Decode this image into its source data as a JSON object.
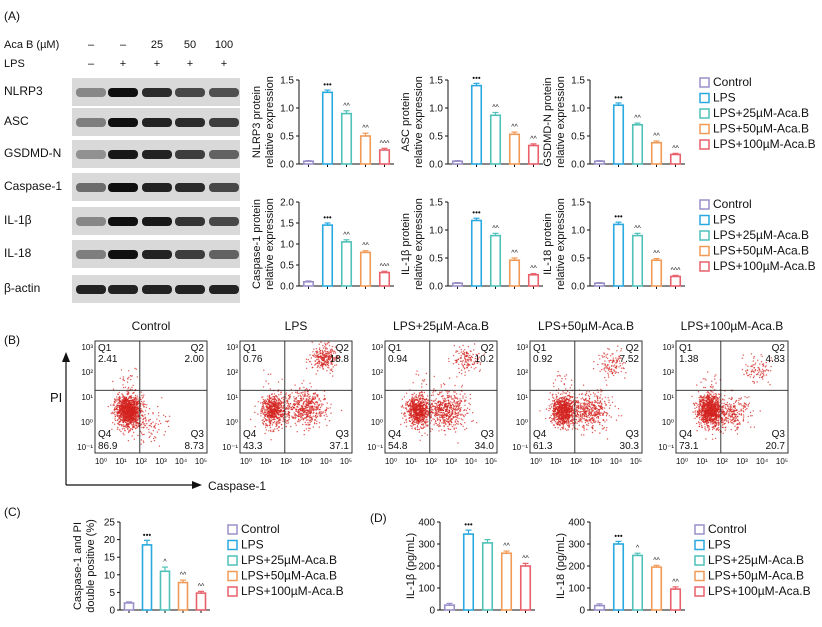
{
  "panels": {
    "A": "(A)",
    "B": "(B)",
    "C": "(C)",
    "D": "(D)"
  },
  "colors": {
    "Control": "#9b8fc9",
    "LPS": "#29a9e0",
    "LPS+25µM-Aca.B": "#4fc1b8",
    "LPS+50µM-Aca.B": "#f19a57",
    "LPS+100µM-Aca.B": "#e8616b",
    "dot": "#d3231f"
  },
  "western": {
    "header_rows": [
      {
        "label": "Aca B (µM)",
        "values": [
          "–",
          "–",
          "25",
          "50",
          "100"
        ]
      },
      {
        "label": "LPS",
        "values": [
          "–",
          "+",
          "+",
          "+",
          "+"
        ]
      }
    ],
    "bands": [
      "NLRP3",
      "ASC",
      "GSDMD-N",
      "Caspase-1",
      "IL-1β",
      "IL-18",
      "β-actin"
    ]
  },
  "legend": [
    "Control",
    "LPS",
    "LPS+25µM-Aca.B",
    "LPS+50µM-Aca.B",
    "LPS+100µM-Aca.B"
  ],
  "chart_data": [
    {
      "id": "nlrp3",
      "type": "bar",
      "ylabel": [
        "NLRP3 protein",
        "relative expression"
      ],
      "ylim": [
        0,
        1.5
      ],
      "yticks": [
        "0.0",
        "0.5",
        "1.0",
        "1.5"
      ],
      "categories": [
        "Control",
        "LPS",
        "LPS+25µM-Aca.B",
        "LPS+50µM-Aca.B",
        "LPS+100µM-Aca.B"
      ],
      "values": [
        0.05,
        1.28,
        0.9,
        0.5,
        0.25
      ],
      "errors": [
        0.01,
        0.04,
        0.05,
        0.05,
        0.03
      ],
      "marks": [
        "",
        "•••",
        "^^",
        "^^",
        "^^^"
      ]
    },
    {
      "id": "asc",
      "type": "bar",
      "ylabel": [
        "ASC protein",
        "relative expression"
      ],
      "ylim": [
        0,
        1.5
      ],
      "yticks": [
        "0.0",
        "0.5",
        "1.0",
        "1.5"
      ],
      "categories": [
        "Control",
        "LPS",
        "LPS+25µM-Aca.B",
        "LPS+50µM-Aca.B",
        "LPS+100µM-Aca.B"
      ],
      "values": [
        0.05,
        1.4,
        0.87,
        0.53,
        0.33
      ],
      "errors": [
        0.01,
        0.04,
        0.05,
        0.04,
        0.03
      ],
      "marks": [
        "",
        "•••",
        "^^",
        "^^",
        "^^"
      ]
    },
    {
      "id": "gsdmd",
      "type": "bar",
      "ylabel": [
        "GSDMD-N protein",
        "relative expression"
      ],
      "ylim": [
        0,
        1.5
      ],
      "yticks": [
        "0.0",
        "0.5",
        "1.0",
        "1.5"
      ],
      "categories": [
        "Control",
        "LPS",
        "LPS+25µM-Aca.B",
        "LPS+50µM-Aca.B",
        "LPS+100µM-Aca.B"
      ],
      "values": [
        0.05,
        1.05,
        0.7,
        0.38,
        0.17
      ],
      "errors": [
        0.01,
        0.04,
        0.03,
        0.03,
        0.02
      ],
      "marks": [
        "",
        "•••",
        "^^",
        "^^",
        "^^"
      ]
    },
    {
      "id": "casp1",
      "type": "bar",
      "ylabel": [
        "Caspase-1 protein",
        "relative expression"
      ],
      "ylim": [
        0,
        2.0
      ],
      "yticks": [
        "0.0",
        "0.5",
        "1.0",
        "1.5",
        "2.0"
      ],
      "categories": [
        "Control",
        "LPS",
        "LPS+25µM-Aca.B",
        "LPS+50µM-Aca.B",
        "LPS+100µM-Aca.B"
      ],
      "values": [
        0.1,
        1.45,
        1.05,
        0.8,
        0.32
      ],
      "errors": [
        0.02,
        0.05,
        0.05,
        0.04,
        0.03
      ],
      "marks": [
        "",
        "•••",
        "^^",
        "^^",
        "^^^"
      ]
    },
    {
      "id": "il1b",
      "type": "bar",
      "ylabel": [
        "IL-1β protein",
        "relative expression"
      ],
      "ylim": [
        0,
        1.5
      ],
      "yticks": [
        "0.0",
        "0.5",
        "1.0",
        "1.5"
      ],
      "categories": [
        "Control",
        "LPS",
        "LPS+25µM-Aca.B",
        "LPS+50µM-Aca.B",
        "LPS+100µM-Aca.B"
      ],
      "values": [
        0.05,
        1.17,
        0.9,
        0.46,
        0.2
      ],
      "errors": [
        0.01,
        0.04,
        0.04,
        0.04,
        0.02
      ],
      "marks": [
        "",
        "•••",
        "^^",
        "^^",
        "^^"
      ]
    },
    {
      "id": "il18",
      "type": "bar",
      "ylabel": [
        "IL-18 protein",
        "relative expression"
      ],
      "ylim": [
        0,
        1.5
      ],
      "yticks": [
        "0.0",
        "0.5",
        "1.0",
        "1.5"
      ],
      "categories": [
        "Control",
        "LPS",
        "LPS+25µM-Aca.B",
        "LPS+50µM-Aca.B",
        "LPS+100µM-Aca.B"
      ],
      "values": [
        0.05,
        1.1,
        0.9,
        0.46,
        0.17
      ],
      "errors": [
        0.01,
        0.04,
        0.04,
        0.03,
        0.02
      ],
      "marks": [
        "",
        "•••",
        "^^",
        "^^",
        "^^^"
      ]
    },
    {
      "id": "c",
      "type": "bar",
      "ylabel": [
        "Caspase-1 and PI",
        "double positive (%)"
      ],
      "ylim": [
        0,
        25
      ],
      "yticks": [
        "0",
        "5",
        "10",
        "15",
        "20",
        "25"
      ],
      "categories": [
        "Control",
        "LPS",
        "LPS+25µM-Aca.B",
        "LPS+50µM-Aca.B",
        "LPS+100µM-Aca.B"
      ],
      "values": [
        2,
        18.5,
        11,
        7.8,
        4.8
      ],
      "errors": [
        0.3,
        1.3,
        1.2,
        0.7,
        0.5
      ],
      "marks": [
        "",
        "•••",
        "^",
        "^^",
        "^^"
      ]
    },
    {
      "id": "d1",
      "type": "bar",
      "ylabel": [
        "IL-1β (pg/mL)"
      ],
      "ylim": [
        0,
        400
      ],
      "yticks": [
        "0",
        "100",
        "200",
        "300",
        "400"
      ],
      "categories": [
        "Control",
        "LPS",
        "LPS+25µM-Aca.B",
        "LPS+50µM-Aca.B",
        "LPS+100µM-Aca.B"
      ],
      "values": [
        22,
        345,
        305,
        258,
        200
      ],
      "errors": [
        8,
        18,
        15,
        10,
        12
      ],
      "marks": [
        "",
        "•••",
        "",
        "^^",
        "^^"
      ]
    },
    {
      "id": "d2",
      "type": "bar",
      "ylabel": [
        "IL-18 (pg/mL)"
      ],
      "ylim": [
        0,
        400
      ],
      "yticks": [
        "0",
        "100",
        "200",
        "300",
        "400"
      ],
      "categories": [
        "Control",
        "LPS",
        "LPS+25µM-Aca.B",
        "LPS+50µM-Aca.B",
        "LPS+100µM-Aca.B"
      ],
      "values": [
        20,
        300,
        248,
        195,
        95
      ],
      "errors": [
        8,
        12,
        10,
        8,
        10
      ],
      "marks": [
        "",
        "•••",
        "^",
        "^^",
        "^^"
      ]
    }
  ],
  "flow": {
    "xlabel": "Caspase-1",
    "ylabel": "PI",
    "xticks": [
      "10⁰",
      "10¹",
      "10²",
      "10³",
      "10⁴",
      "10⁵"
    ],
    "yticks": [
      "10³",
      "10²",
      "10¹",
      "10⁰",
      "10⁻¹"
    ],
    "plots": [
      {
        "title": "Control",
        "q1": "2.41",
        "q2": "2.00",
        "q3": "8.73",
        "q4": "86.9"
      },
      {
        "title": "LPS",
        "q1": "0.76",
        "q2": "18.8",
        "q3": "37.1",
        "q4": "43.3"
      },
      {
        "title": "LPS+25µM-Aca.B",
        "q1": "0.94",
        "q2": "10.2",
        "q3": "34.0",
        "q4": "54.8"
      },
      {
        "title": "LPS+50µM-Aca.B",
        "q1": "0.92",
        "q2": "7.52",
        "q3": "30.3",
        "q4": "61.3"
      },
      {
        "title": "LPS+100µM-Aca.B",
        "q1": "1.38",
        "q2": "4.83",
        "q3": "20.7",
        "q4": "73.1"
      }
    ]
  }
}
